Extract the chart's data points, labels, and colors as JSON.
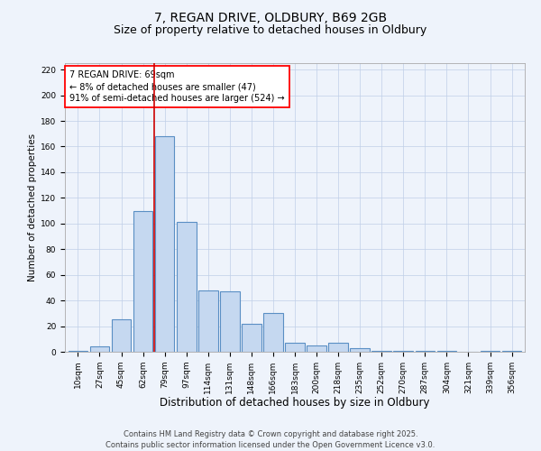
{
  "title1": "7, REGAN DRIVE, OLDBURY, B69 2GB",
  "title2": "Size of property relative to detached houses in Oldbury",
  "xlabel": "Distribution of detached houses by size in Oldbury",
  "ylabel": "Number of detached properties",
  "categories": [
    "10sqm",
    "27sqm",
    "45sqm",
    "62sqm",
    "79sqm",
    "97sqm",
    "114sqm",
    "131sqm",
    "148sqm",
    "166sqm",
    "183sqm",
    "200sqm",
    "218sqm",
    "235sqm",
    "252sqm",
    "270sqm",
    "287sqm",
    "304sqm",
    "321sqm",
    "339sqm",
    "356sqm"
  ],
  "values": [
    1,
    4,
    25,
    110,
    168,
    101,
    48,
    47,
    22,
    30,
    7,
    5,
    7,
    3,
    1,
    1,
    1,
    1,
    0,
    1,
    1
  ],
  "bar_color": "#c5d8f0",
  "bar_edge_color": "#5a8fc4",
  "bar_edge_width": 0.8,
  "grid_color": "#c0cfe8",
  "bg_color": "#eef3fb",
  "annotation_line1": "7 REGAN DRIVE: 69sqm",
  "annotation_line2": "← 8% of detached houses are smaller (47)",
  "annotation_line3": "91% of semi-detached houses are larger (524) →",
  "vline_x": 3.5,
  "vline_color": "#cc0000",
  "ylim": [
    0,
    225
  ],
  "yticks": [
    0,
    20,
    40,
    60,
    80,
    100,
    120,
    140,
    160,
    180,
    200,
    220
  ],
  "footer_line1": "Contains HM Land Registry data © Crown copyright and database right 2025.",
  "footer_line2": "Contains public sector information licensed under the Open Government Licence v3.0.",
  "title1_fontsize": 10,
  "title2_fontsize": 9,
  "xlabel_fontsize": 8.5,
  "ylabel_fontsize": 7.5,
  "tick_fontsize": 6.5,
  "annotation_fontsize": 7,
  "footer_fontsize": 6
}
